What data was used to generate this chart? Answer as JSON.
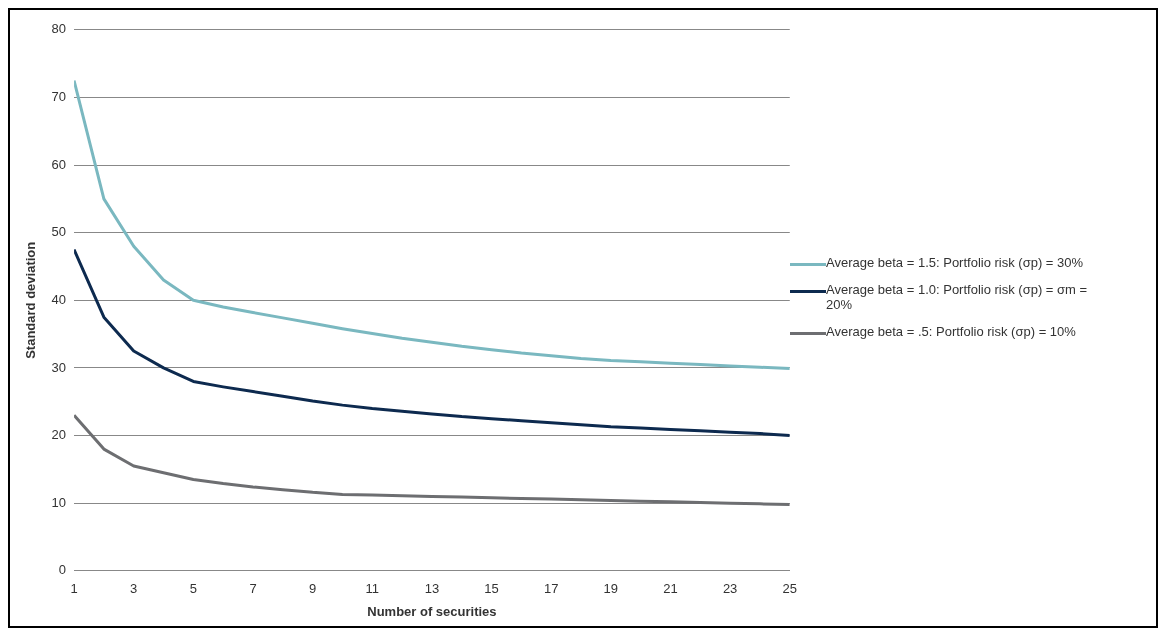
{
  "chart_data": {
    "type": "line",
    "xlabel": "Number of securities",
    "ylabel": "Standard deviation",
    "x": [
      1,
      2,
      3,
      4,
      5,
      6,
      7,
      8,
      9,
      10,
      11,
      12,
      13,
      14,
      15,
      16,
      17,
      18,
      19,
      20,
      21,
      22,
      23,
      24,
      25
    ],
    "xlim": [
      1,
      25
    ],
    "xticks": [
      1,
      3,
      5,
      7,
      9,
      11,
      13,
      15,
      17,
      19,
      21,
      23,
      25
    ],
    "series": [
      {
        "name": "Average beta = 1.5: Portfolio risk (σp) = 30%",
        "color": "#7ab8c0",
        "values": [
          72.5,
          55,
          48,
          43,
          40,
          39,
          38.2,
          37.4,
          36.6,
          35.8,
          35.1,
          34.4,
          33.8,
          33.2,
          32.7,
          32.2,
          31.8,
          31.4,
          31.1,
          30.9,
          30.7,
          30.5,
          30.3,
          30.1,
          29.9
        ]
      },
      {
        "name": "Average beta = 1.0: Portfolio risk (σp) = σm = 20%",
        "color": "#0d2a4f",
        "values": [
          47.5,
          37.5,
          32.5,
          30,
          28,
          27.2,
          26.5,
          25.8,
          25.1,
          24.5,
          24,
          23.6,
          23.2,
          22.8,
          22.5,
          22.2,
          21.9,
          21.6,
          21.3,
          21.1,
          20.9,
          20.7,
          20.5,
          20.3,
          20
        ]
      },
      {
        "name": "Average beta = .5: Portfolio risk (σp) = 10%",
        "color": "#6d6e71",
        "values": [
          23,
          18,
          15.5,
          14.5,
          13.5,
          12.9,
          12.4,
          12,
          11.6,
          11.3,
          11.2,
          11.1,
          11,
          10.9,
          10.8,
          10.7,
          10.6,
          10.5,
          10.4,
          10.3,
          10.2,
          10.1,
          10,
          9.9,
          9.8
        ]
      }
    ],
    "ylim": [
      0,
      80
    ],
    "yticks": [
      0,
      10,
      20,
      30,
      40,
      50,
      60,
      70,
      80
    ],
    "grid": "y",
    "legend": "right",
    "marker": "none",
    "line_style": "solid"
  }
}
